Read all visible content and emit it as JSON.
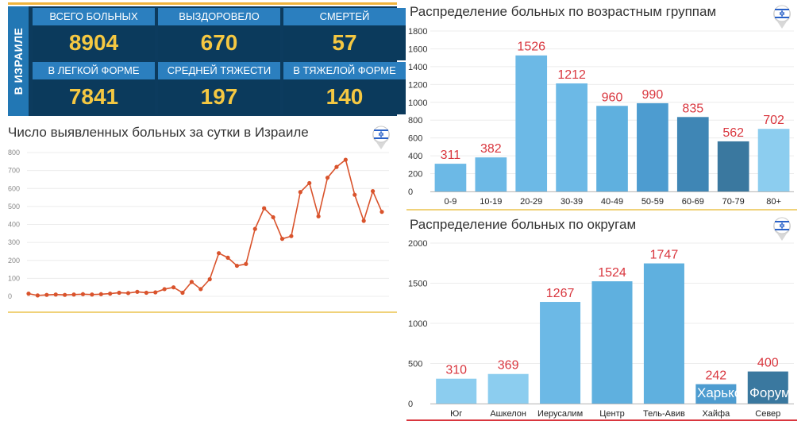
{
  "stats": {
    "side_label": "В ИЗРАИЛЕ",
    "cells": [
      {
        "label": "ВСЕГО БОЛЬНЫХ",
        "value": "8904"
      },
      {
        "label": "ВЫЗДОРОВЕЛО",
        "value": "670"
      },
      {
        "label": "СМЕРТЕЙ",
        "value": "57"
      },
      {
        "label": "В ЛЕГКОЙ ФОРМЕ",
        "value": "7841"
      },
      {
        "label": "СРЕДНЕЙ ТЯЖЕСТИ",
        "value": "197"
      },
      {
        "label": "В ТЯЖЕЛОЙ ФОРМЕ",
        "value": "140"
      }
    ]
  },
  "watermark": {
    "left": "Харько",
    "right": "Форум"
  },
  "colors": {
    "line": "#d9532c",
    "accent": "#f0b43c",
    "bar_red": "#d9363e"
  },
  "chart_data": [
    {
      "type": "line",
      "title": "Число выявленных больных за сутки в Израиле",
      "xlabel": "",
      "ylabel": "",
      "ylim": [
        0,
        800
      ],
      "yticks": [
        0,
        100,
        200,
        300,
        400,
        500,
        600,
        700,
        800
      ],
      "x": [
        1,
        2,
        3,
        4,
        5,
        6,
        7,
        8,
        9,
        10,
        11,
        12,
        13,
        14,
        15,
        16,
        17,
        18,
        19,
        20,
        21,
        22,
        23,
        24,
        25,
        26,
        27,
        28,
        29,
        30,
        31,
        32,
        33,
        34,
        35,
        36,
        37,
        38,
        39,
        40
      ],
      "values": [
        15,
        5,
        8,
        10,
        8,
        10,
        12,
        10,
        12,
        15,
        20,
        18,
        25,
        20,
        22,
        40,
        50,
        20,
        80,
        40,
        95,
        240,
        215,
        170,
        180,
        375,
        490,
        440,
        320,
        335,
        580,
        630,
        445,
        660,
        720,
        760,
        565,
        420,
        585,
        470
      ],
      "grid": true
    },
    {
      "type": "bar",
      "title": "Распределение больных по возрастным группам",
      "categories": [
        "0-9",
        "10-19",
        "20-29",
        "30-39",
        "40-49",
        "50-59",
        "60-69",
        "70-79",
        "80+"
      ],
      "values": [
        311,
        382,
        1526,
        1212,
        960,
        990,
        835,
        562,
        702
      ],
      "ylim": [
        0,
        1800
      ],
      "yticks": [
        0,
        200,
        400,
        600,
        800,
        1000,
        1200,
        1400,
        1600,
        1800
      ],
      "data_labels": [
        "311",
        "382",
        "1526",
        "1212",
        "960",
        "990",
        "835",
        "562",
        "702"
      ],
      "bar_colors": [
        "#6cb9e6",
        "#6cb9e6",
        "#6cb9e6",
        "#6cb9e6",
        "#5fb0df",
        "#4d9cd0",
        "#3f86b5",
        "#3a789f",
        "#8ccdef"
      ]
    },
    {
      "type": "bar",
      "title": "Распределение больных по округам",
      "categories": [
        "Юг",
        "Ашкелон",
        "Иерусалим",
        "Центр",
        "Тель-Авив",
        "Хайфа",
        "Север"
      ],
      "values": [
        310,
        369,
        1267,
        1524,
        1747,
        242,
        400
      ],
      "ylim": [
        0,
        2000
      ],
      "yticks": [
        0,
        500,
        1000,
        1500,
        2000
      ],
      "data_labels": [
        "310",
        "369",
        "1267",
        "1524",
        "1747",
        "242",
        "400"
      ],
      "bar_colors": [
        "#8ccdef",
        "#8ccdef",
        "#6cb9e6",
        "#5fb0df",
        "#5fb0df",
        "#4d9cd0",
        "#3a789f"
      ]
    }
  ]
}
